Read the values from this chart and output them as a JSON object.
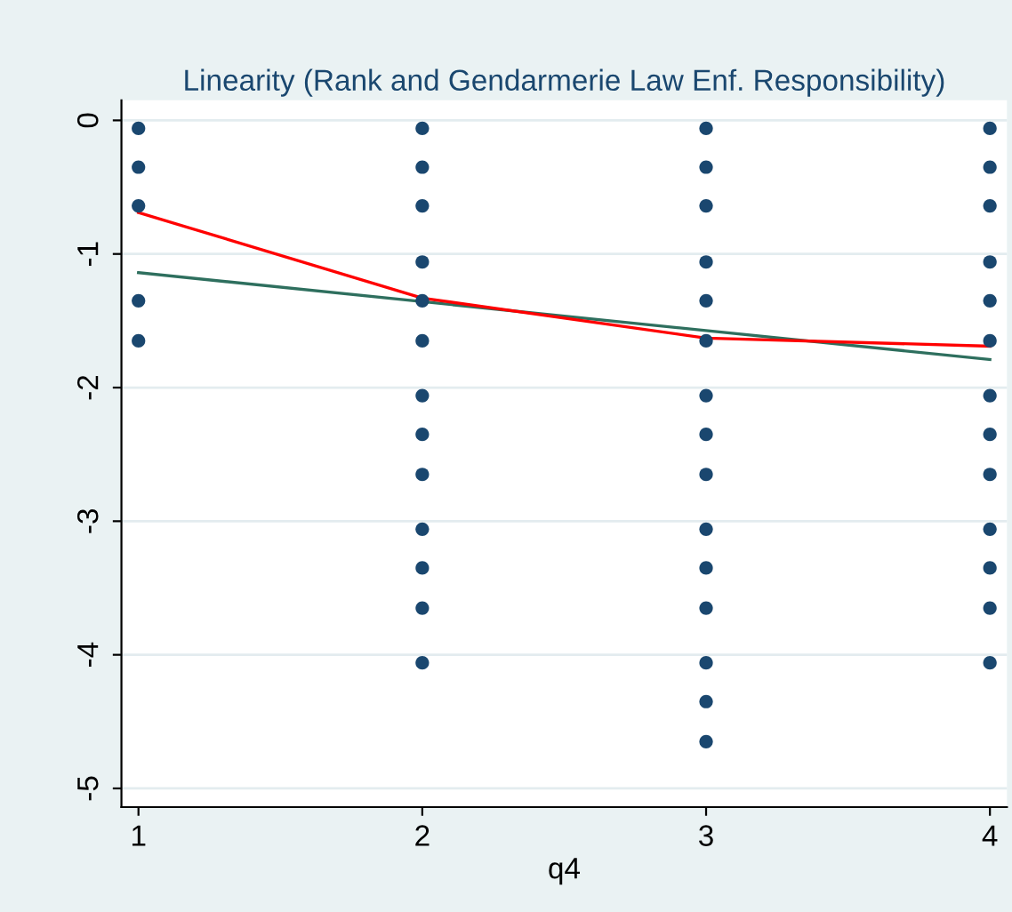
{
  "chart_data": {
    "type": "scatter",
    "title": "Linearity (Rank and Gendarmerie Law Enf. Responsibility)",
    "xlabel": "q4",
    "xlim": [
      0.94,
      4.06
    ],
    "xticks": [
      1,
      2,
      3,
      4
    ],
    "ylim": [
      -5.14,
      0.15
    ],
    "yticks": [
      -5,
      -4,
      -3,
      -2,
      -1,
      0
    ],
    "grid": "y",
    "legend": false,
    "series": [
      {
        "marker": "circle",
        "color": "#1a476f",
        "x": [
          1,
          1,
          1,
          1,
          1,
          2,
          2,
          2,
          2,
          2,
          2,
          2,
          2,
          2,
          2,
          2,
          2,
          2,
          3,
          3,
          3,
          3,
          3,
          3,
          3,
          3,
          3,
          3,
          3,
          3,
          3,
          3,
          3,
          4,
          4,
          4,
          4,
          4,
          4,
          4,
          4,
          4,
          4,
          4,
          4,
          4
        ],
        "values": [
          -0.06,
          -0.35,
          -0.64,
          -1.35,
          -1.65,
          -0.06,
          -0.35,
          -0.64,
          -1.06,
          -1.35,
          -1.65,
          -2.06,
          -2.35,
          -2.65,
          -3.06,
          -3.35,
          -3.65,
          -4.06,
          -0.06,
          -0.35,
          -0.64,
          -1.06,
          -1.35,
          -1.65,
          -2.06,
          -2.35,
          -2.65,
          -3.06,
          -3.35,
          -3.65,
          -4.06,
          -4.35,
          -4.65,
          -0.06,
          -0.35,
          -0.64,
          -1.06,
          -1.35,
          -1.65,
          -2.06,
          -2.35,
          -2.65,
          -3.06,
          -3.35,
          -3.65,
          -4.06
        ]
      },
      {
        "type": "line",
        "color": "#2e6f5e",
        "x": [
          1,
          4
        ],
        "values": [
          -1.14,
          -1.79
        ]
      },
      {
        "type": "line",
        "color": "#ff0000",
        "x": [
          1,
          2,
          3,
          4
        ],
        "values": [
          -0.69,
          -1.33,
          -1.63,
          -1.69
        ]
      }
    ]
  }
}
